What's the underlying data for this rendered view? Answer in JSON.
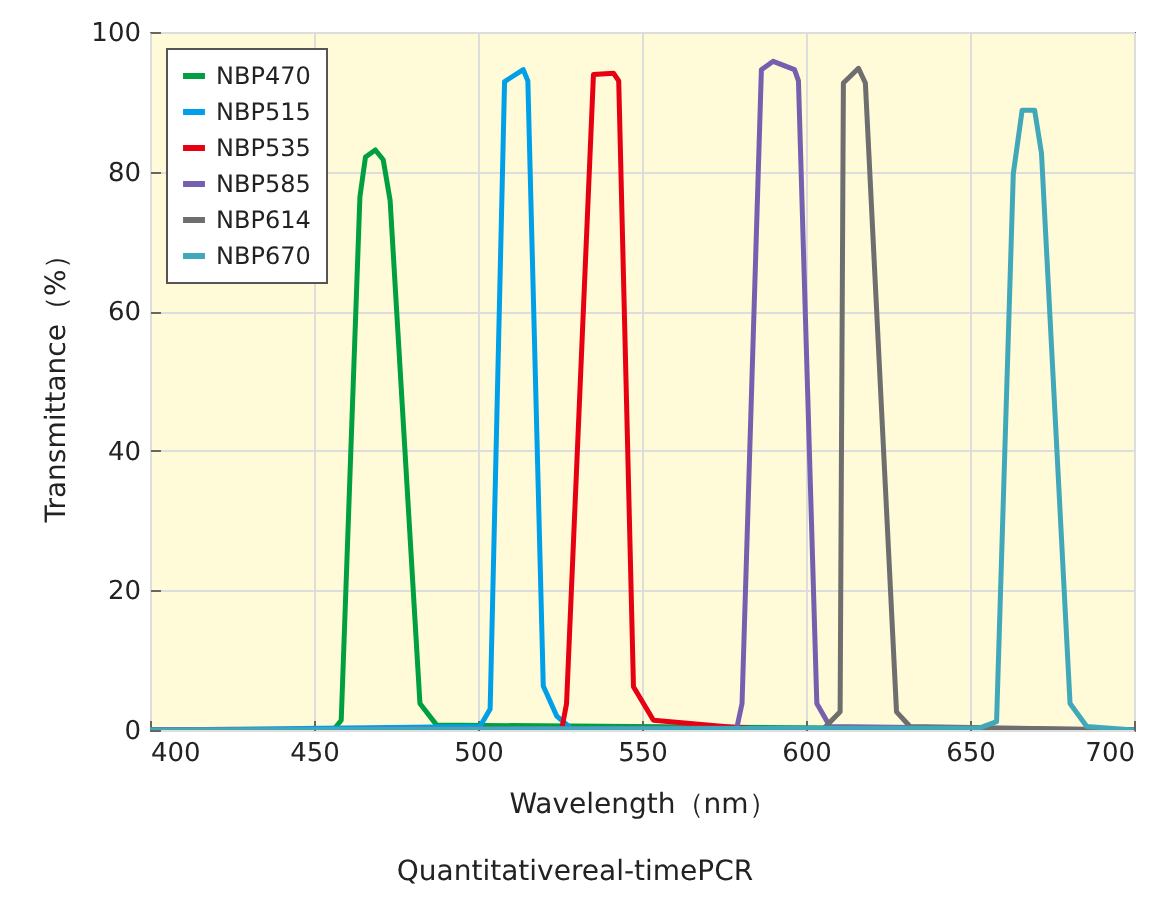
{
  "chart_data": {
    "type": "line",
    "xlabel": "Wavelength（nm）",
    "ylabel": "Transmittance（%）",
    "annotations": [
      "Quantitativereal-timePCR"
    ],
    "xlim": [
      400,
      700
    ],
    "xticks": [
      400,
      450,
      500,
      550,
      600,
      650,
      700
    ],
    "ylim": [
      0,
      100
    ],
    "yticks": [
      0,
      20,
      40,
      60,
      80,
      100
    ],
    "grid": true,
    "legend": "top left",
    "marker": "none",
    "line_style": "solid",
    "series": [
      {
        "name": "NBP470",
        "color": "#00a040",
        "x": [
          400,
          455.9,
          458.3,
          464,
          465.7,
          468.7,
          471.1,
          473.2,
          482.3,
          487.4,
          700
        ],
        "values": [
          0,
          0,
          1.4,
          76.4,
          82.1,
          83.1,
          81.7,
          75.9,
          3.8,
          0.7,
          0
        ]
      },
      {
        "name": "NBP515",
        "color": "#00a0e9",
        "x": [
          400,
          500.6,
          503.7,
          508.1,
          513.8,
          515.2,
          519.9,
          524,
          529,
          700
        ],
        "values": [
          0,
          0.5,
          3,
          92.9,
          94.6,
          93,
          6.3,
          2,
          0,
          0
        ]
      },
      {
        "name": "NBP535",
        "color": "#e60012",
        "x": [
          400,
          525.5,
          527,
          535.2,
          541.3,
          542.9,
          547.4,
          553.5,
          575,
          590,
          700
        ],
        "values": [
          0,
          0,
          3.8,
          93.9,
          94.1,
          93,
          6.2,
          1.4,
          0.5,
          0,
          0
        ]
      },
      {
        "name": "NBP585",
        "color": "#7560b0",
        "x": [
          400,
          578.9,
          580.5,
          586.4,
          590,
          596.5,
          597.7,
          603.3,
          607.3,
          700
        ],
        "values": [
          0,
          0.3,
          3.8,
          94.6,
          95.8,
          94.6,
          93,
          3.8,
          0.5,
          0
        ]
      },
      {
        "name": "NBP614",
        "color": "#6e6e6e",
        "x": [
          400,
          605,
          610.4,
          611.4,
          616,
          618.1,
          627.6,
          631.7,
          700
        ],
        "values": [
          0,
          0,
          2.6,
          92.7,
          94.8,
          92.7,
          2.6,
          0.5,
          0
        ]
      },
      {
        "name": "NBP670",
        "color": "#40a8b8",
        "x": [
          400,
          653,
          658.1,
          663.2,
          665.9,
          669.7,
          671.8,
          680.5,
          685.6,
          700
        ],
        "values": [
          0,
          0.3,
          1.2,
          79.7,
          88.8,
          88.8,
          82.6,
          3.8,
          0.5,
          0
        ]
      }
    ]
  }
}
